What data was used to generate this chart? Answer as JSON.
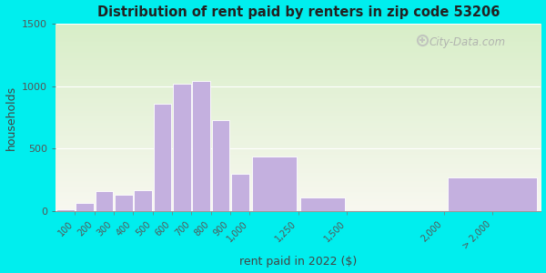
{
  "title": "Distribution of rent paid by renters in zip code 53206",
  "xlabel": "rent paid in 2022 ($)",
  "ylabel": "households",
  "bar_color": "#c4b0df",
  "background_color": "#00eeee",
  "plot_bg_top": "#e8f5e0",
  "plot_bg_bottom": "#f5f5f0",
  "ylim": [
    0,
    1500
  ],
  "yticks": [
    0,
    500,
    1000,
    1500
  ],
  "bin_edges": [
    0,
    100,
    200,
    300,
    400,
    500,
    600,
    700,
    800,
    900,
    1000,
    1250,
    1500,
    2000,
    2500
  ],
  "bin_labels": [
    "100",
    "200",
    "300",
    "400",
    "500",
    "600",
    "700",
    "800",
    "900",
    "1,000",
    "1,250",
    "1,500",
    "2,000",
    "> 2,000"
  ],
  "values": [
    15,
    65,
    160,
    130,
    170,
    860,
    1020,
    1040,
    730,
    300,
    440,
    110,
    0,
    270
  ],
  "xlim": [
    0,
    2500
  ],
  "watermark": "City-Data.com",
  "tick_positions": [
    100,
    200,
    300,
    400,
    500,
    600,
    700,
    800,
    900,
    1000,
    1250,
    1500,
    2000,
    2250
  ]
}
